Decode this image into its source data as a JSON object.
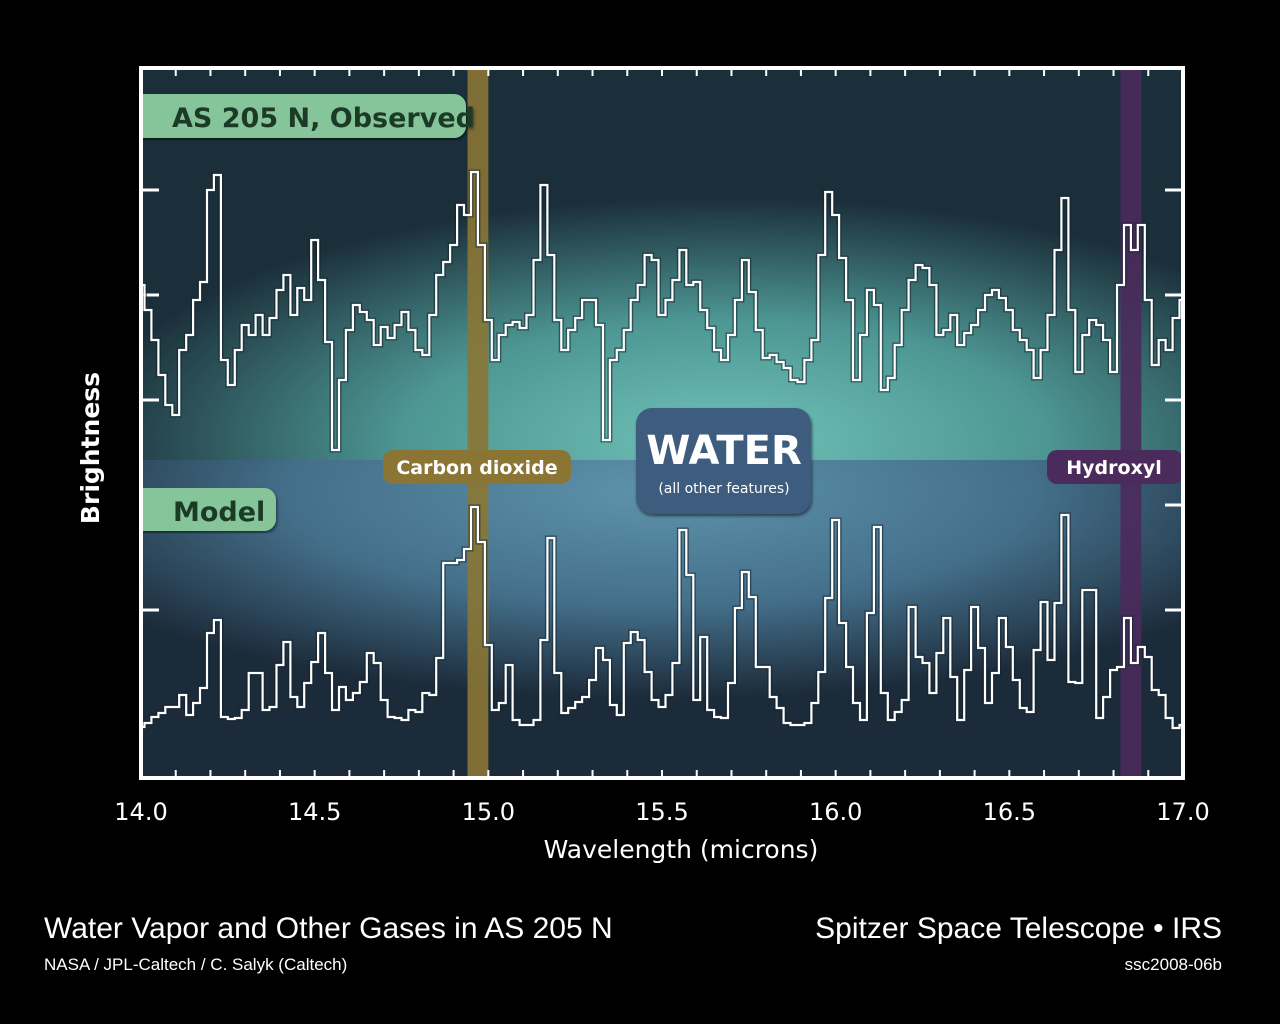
{
  "chart_data": {
    "type": "line",
    "title": "Water Vapor and Other Gases in AS 205 N",
    "xlabel": "Wavelength (microns)",
    "ylabel": "Brightness",
    "xlim": [
      14.0,
      17.0
    ],
    "ylim": [
      0.22,
      7.32
    ],
    "x_ticks": [
      "14.0",
      "14.5",
      "15.0",
      "15.5",
      "16.0",
      "16.5",
      "17.0"
    ],
    "x_tick_values": [
      14.0,
      14.5,
      15.0,
      15.5,
      16.0,
      16.5,
      17.0
    ],
    "y_tick_values": [
      1.9,
      2.95,
      4.0,
      5.05,
      6.1
    ],
    "x_start": 14.0,
    "x_step": 0.02,
    "series": [
      {
        "name": "AS 205 N, Observed",
        "color": "#ffffff",
        "values": [
          5.15,
          4.9,
          4.6,
          4.25,
          3.95,
          3.85,
          4.5,
          4.65,
          5.0,
          5.18,
          6.1,
          6.25,
          4.4,
          4.15,
          4.5,
          4.75,
          4.65,
          4.85,
          4.65,
          4.82,
          5.1,
          5.25,
          4.85,
          5.12,
          5.0,
          5.6,
          5.2,
          4.58,
          3.5,
          4.2,
          4.7,
          4.95,
          4.88,
          4.8,
          4.55,
          4.73,
          4.62,
          4.75,
          4.88,
          4.7,
          4.5,
          4.45,
          4.85,
          5.25,
          5.38,
          5.55,
          5.95,
          5.85,
          6.28,
          5.55,
          4.8,
          4.4,
          4.65,
          4.75,
          4.78,
          4.72,
          4.85,
          5.4,
          6.15,
          5.45,
          4.8,
          4.5,
          4.7,
          4.82,
          5.0,
          5.0,
          4.75,
          3.6,
          4.4,
          4.5,
          4.7,
          5.0,
          5.15,
          5.45,
          5.4,
          4.85,
          5.0,
          5.2,
          5.5,
          5.15,
          5.18,
          4.9,
          4.72,
          4.5,
          4.4,
          4.65,
          5.0,
          5.4,
          5.08,
          4.7,
          4.42,
          4.45,
          4.38,
          4.32,
          4.2,
          4.18,
          4.4,
          4.6,
          5.45,
          6.08,
          5.85,
          5.42,
          5.0,
          4.2,
          4.65,
          5.1,
          4.95,
          4.1,
          4.22,
          4.55,
          4.9,
          5.2,
          5.35,
          5.32,
          5.15,
          4.65,
          4.7,
          4.85,
          4.55,
          4.67,
          4.75,
          4.9,
          5.05,
          5.1,
          5.02,
          4.9,
          4.7,
          4.6,
          4.5,
          4.22,
          4.5,
          4.85,
          5.5,
          6.02,
          4.9,
          4.28,
          4.65,
          4.8,
          4.75,
          4.6,
          4.28,
          5.15,
          5.75,
          5.5,
          5.75,
          5.0,
          4.35,
          4.6,
          4.5,
          4.82,
          5.0
        ]
      },
      {
        "name": "Model",
        "color": "#ffffff",
        "values": [
          0.73,
          0.77,
          0.83,
          0.87,
          0.93,
          0.93,
          1.05,
          0.85,
          0.97,
          1.12,
          1.67,
          1.8,
          0.83,
          0.81,
          0.82,
          0.9,
          1.27,
          1.27,
          0.9,
          0.93,
          1.35,
          1.58,
          1.03,
          0.93,
          1.17,
          1.38,
          1.67,
          1.27,
          0.9,
          1.13,
          1.0,
          1.07,
          1.18,
          1.47,
          1.37,
          1.0,
          0.83,
          0.82,
          0.8,
          0.9,
          0.88,
          1.07,
          1.05,
          1.42,
          2.37,
          2.37,
          2.4,
          2.51,
          2.93,
          2.58,
          1.55,
          0.9,
          0.97,
          1.35,
          0.8,
          0.75,
          0.75,
          0.8,
          1.6,
          2.62,
          1.27,
          0.87,
          0.92,
          0.98,
          1.03,
          1.2,
          1.52,
          1.4,
          0.95,
          0.85,
          1.57,
          1.68,
          1.6,
          1.28,
          1.0,
          0.93,
          1.05,
          1.37,
          2.7,
          2.25,
          1.0,
          1.63,
          0.9,
          0.83,
          0.82,
          1.17,
          1.92,
          2.28,
          2.03,
          1.33,
          1.33,
          1.03,
          0.92,
          0.77,
          0.75,
          0.75,
          0.77,
          0.97,
          1.28,
          2.02,
          2.8,
          1.77,
          1.33,
          0.97,
          0.8,
          1.87,
          2.73,
          1.07,
          0.8,
          0.88,
          1.0,
          1.93,
          1.43,
          1.37,
          1.07,
          1.47,
          1.82,
          1.23,
          0.8,
          1.3,
          1.93,
          1.52,
          0.97,
          1.27,
          1.82,
          1.53,
          1.2,
          0.92,
          0.88,
          1.5,
          1.98,
          1.4,
          1.97,
          2.85,
          1.18,
          1.17,
          2.1,
          2.1,
          0.82,
          1.03,
          1.3,
          1.33,
          1.82,
          1.37,
          1.53,
          1.43,
          1.1,
          1.05,
          0.82,
          0.72,
          0.75
        ]
      }
    ],
    "panels": {
      "observed_label": "AS 205 N, Observed",
      "model_label": "Model"
    },
    "annotations": {
      "co2": {
        "label": "Carbon dioxide",
        "band": [
          14.94,
          15.0
        ],
        "color": "#8a7535"
      },
      "hydroxyl": {
        "label": "Hydroxyl",
        "band": [
          16.82,
          16.88
        ],
        "color": "#4b2a5c"
      },
      "water": {
        "label": "WATER",
        "sublabel": "(all other features)",
        "color": "#3d5c7e"
      }
    },
    "panel_divider": 3.4,
    "grid": false
  },
  "footer": {
    "title": "Water Vapor and Other Gases in AS 205 N",
    "credit": "NASA / JPL-Caltech / C. Salyk (Caltech)",
    "observatory": "Spitzer Space Telescope • IRS",
    "image_id": "ssc2008-06b"
  }
}
